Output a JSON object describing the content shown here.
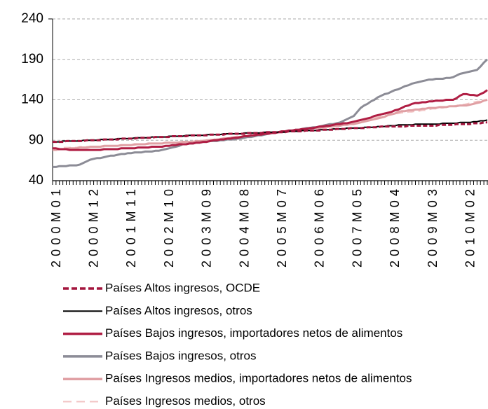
{
  "chart_data": {
    "type": "line",
    "categories": [
      "2000M01",
      null,
      null,
      null,
      null,
      null,
      null,
      null,
      null,
      null,
      null,
      "2000M12",
      null,
      null,
      null,
      null,
      null,
      null,
      null,
      null,
      null,
      null,
      "2001M11",
      null,
      null,
      null,
      null,
      null,
      null,
      null,
      null,
      null,
      null,
      "2002M10",
      null,
      null,
      null,
      null,
      null,
      null,
      null,
      null,
      null,
      null,
      "2003M09",
      null,
      null,
      null,
      null,
      null,
      null,
      null,
      null,
      null,
      null,
      "2004M08",
      null,
      null,
      null,
      null,
      null,
      null,
      null,
      null,
      null,
      null,
      "2005M07",
      null,
      null,
      null,
      null,
      null,
      null,
      null,
      null,
      null,
      null,
      "2006M06",
      null,
      null,
      null,
      null,
      null,
      null,
      null,
      null,
      null,
      null,
      "2007M05",
      null,
      null,
      null,
      null,
      null,
      null,
      null,
      null,
      null,
      null,
      "2008M04",
      null,
      null,
      null,
      null,
      null,
      null,
      null,
      null,
      null,
      null,
      "2009M03",
      null,
      null,
      null,
      null,
      null,
      null,
      null,
      null,
      null,
      null,
      "2010M02",
      null,
      null,
      null,
      null,
      null,
      null
    ],
    "ylim": [
      40,
      240
    ],
    "yticks": [
      40,
      90,
      140,
      190,
      240
    ],
    "grid": true,
    "series": [
      {
        "name": "Países Altos ingresos, OCDE",
        "color": "#a3153d",
        "dashed": true,
        "values": [
          88,
          88,
          88,
          88,
          89,
          89,
          89,
          89,
          89,
          89,
          90,
          90,
          90,
          90,
          90,
          91,
          91,
          91,
          91,
          91,
          92,
          92,
          92,
          92,
          92,
          93,
          93,
          93,
          93,
          93,
          94,
          94,
          94,
          94,
          94,
          95,
          95,
          95,
          95,
          95,
          96,
          96,
          96,
          96,
          96,
          96,
          97,
          97,
          97,
          97,
          97,
          98,
          98,
          98,
          98,
          98,
          98,
          99,
          99,
          99,
          99,
          99,
          100,
          100,
          100,
          100,
          100,
          100,
          100,
          101,
          101,
          101,
          101,
          101,
          102,
          102,
          102,
          102,
          102,
          103,
          103,
          103,
          103,
          104,
          104,
          104,
          104,
          105,
          105,
          105,
          105,
          105,
          106,
          106,
          106,
          106,
          107,
          107,
          107,
          107,
          107,
          107,
          107,
          107,
          108,
          108,
          108,
          108,
          108,
          108,
          108,
          108,
          108,
          109,
          109,
          109,
          109,
          109,
          110,
          110,
          110,
          110,
          110,
          111,
          111,
          111,
          112,
          112
        ]
      },
      {
        "name": "Países Altos ingresos, otros",
        "color": "#000000",
        "dashed": false,
        "values": [
          88,
          88,
          88,
          89,
          89,
          89,
          89,
          89,
          89,
          90,
          90,
          90,
          90,
          90,
          91,
          91,
          91,
          91,
          91,
          92,
          92,
          92,
          92,
          92,
          93,
          93,
          93,
          93,
          93,
          94,
          94,
          94,
          94,
          94,
          95,
          95,
          95,
          95,
          95,
          96,
          96,
          96,
          96,
          96,
          96,
          97,
          97,
          97,
          97,
          97,
          98,
          98,
          98,
          98,
          98,
          98,
          99,
          99,
          99,
          99,
          99,
          99,
          100,
          100,
          100,
          100,
          100,
          100,
          100,
          101,
          101,
          101,
          101,
          102,
          102,
          102,
          102,
          102,
          103,
          103,
          103,
          103,
          104,
          104,
          104,
          104,
          105,
          105,
          105,
          105,
          105,
          106,
          106,
          106,
          106,
          107,
          107,
          107,
          108,
          108,
          108,
          109,
          109,
          109,
          109,
          109,
          110,
          110,
          110,
          110,
          110,
          110,
          110,
          110,
          111,
          111,
          111,
          111,
          111,
          112,
          112,
          112,
          112,
          113,
          113,
          114,
          114,
          115
        ]
      },
      {
        "name": "Países Bajos ingresos, importadores netos de alimentos",
        "color": "#b01e44",
        "dashed": false,
        "values": [
          80,
          80,
          79,
          79,
          79,
          78,
          78,
          78,
          78,
          78,
          78,
          78,
          78,
          78,
          78,
          79,
          79,
          79,
          79,
          79,
          80,
          80,
          80,
          80,
          80,
          81,
          81,
          81,
          81,
          82,
          82,
          82,
          82,
          83,
          83,
          84,
          84,
          85,
          85,
          85,
          86,
          86,
          87,
          87,
          88,
          88,
          89,
          90,
          90,
          91,
          91,
          92,
          92,
          93,
          93,
          94,
          95,
          95,
          96,
          96,
          97,
          97,
          98,
          98,
          99,
          99,
          100,
          101,
          101,
          102,
          102,
          103,
          103,
          104,
          104,
          105,
          105,
          106,
          107,
          107,
          108,
          108,
          109,
          110,
          110,
          111,
          111,
          112,
          113,
          114,
          115,
          116,
          117,
          118,
          120,
          121,
          122,
          123,
          124,
          125,
          127,
          128,
          130,
          132,
          133,
          135,
          136,
          136,
          137,
          137,
          138,
          138,
          139,
          139,
          139,
          140,
          140,
          140,
          142,
          145,
          147,
          147,
          146,
          146,
          145,
          147,
          149,
          152
        ]
      },
      {
        "name": "Países Bajos ingresos, otros",
        "color": "#8c8c96",
        "dashed": false,
        "values": [
          57,
          57,
          58,
          58,
          58,
          59,
          59,
          59,
          60,
          62,
          64,
          66,
          67,
          68,
          68,
          69,
          70,
          71,
          71,
          72,
          73,
          73,
          74,
          74,
          75,
          75,
          75,
          76,
          76,
          76,
          77,
          77,
          78,
          79,
          80,
          81,
          82,
          83,
          85,
          85,
          86,
          86,
          87,
          87,
          88,
          88,
          89,
          89,
          89,
          90,
          90,
          91,
          91,
          91,
          92,
          92,
          93,
          94,
          94,
          95,
          96,
          96,
          97,
          98,
          99,
          99,
          100,
          101,
          101,
          102,
          102,
          103,
          103,
          104,
          105,
          105,
          106,
          106,
          107,
          108,
          109,
          110,
          110,
          111,
          112,
          114,
          116,
          118,
          120,
          125,
          130,
          133,
          135,
          138,
          140,
          143,
          145,
          147,
          148,
          150,
          152,
          153,
          155,
          157,
          158,
          160,
          161,
          162,
          163,
          164,
          165,
          165,
          166,
          166,
          166,
          167,
          167,
          168,
          170,
          172,
          173,
          174,
          175,
          176,
          177,
          181,
          186,
          190
        ]
      },
      {
        "name": "Países Ingresos medios, importadores netos de alimentos",
        "color": "#e0a0a4",
        "dashed": false,
        "values": [
          78,
          78,
          79,
          79,
          79,
          80,
          80,
          80,
          81,
          81,
          81,
          82,
          82,
          82,
          82,
          83,
          83,
          83,
          83,
          83,
          84,
          84,
          84,
          84,
          85,
          85,
          85,
          85,
          86,
          86,
          86,
          86,
          86,
          87,
          87,
          87,
          87,
          87,
          88,
          88,
          88,
          88,
          89,
          89,
          89,
          90,
          90,
          90,
          91,
          91,
          92,
          92,
          93,
          93,
          94,
          94,
          95,
          95,
          96,
          96,
          97,
          97,
          98,
          98,
          99,
          99,
          100,
          100,
          101,
          101,
          102,
          102,
          103,
          103,
          104,
          104,
          105,
          105,
          105,
          106,
          106,
          107,
          107,
          108,
          108,
          109,
          109,
          110,
          110,
          111,
          112,
          113,
          114,
          115,
          116,
          117,
          118,
          119,
          121,
          122,
          123,
          125,
          126,
          126,
          127,
          127,
          128,
          128,
          129,
          129,
          130,
          130,
          130,
          131,
          131,
          131,
          132,
          132,
          132,
          133,
          133,
          133,
          134,
          135,
          136,
          137,
          139,
          140
        ]
      },
      {
        "name": "Países Ingresos medios, otros",
        "color": "#f2c4c4",
        "dashed": true,
        "values": [
          80,
          80,
          80,
          81,
          81,
          81,
          81,
          81,
          82,
          82,
          82,
          82,
          82,
          82,
          82,
          82,
          83,
          83,
          83,
          83,
          83,
          84,
          84,
          84,
          84,
          85,
          85,
          85,
          85,
          86,
          86,
          86,
          86,
          87,
          87,
          87,
          87,
          88,
          88,
          88,
          88,
          89,
          89,
          89,
          90,
          90,
          91,
          91,
          92,
          92,
          93,
          93,
          94,
          94,
          95,
          95,
          96,
          96,
          97,
          97,
          98,
          98,
          99,
          99,
          100,
          100,
          100,
          101,
          101,
          102,
          102,
          103,
          103,
          104,
          104,
          105,
          105,
          106,
          107,
          107,
          108,
          108,
          109,
          109,
          110,
          110,
          111,
          111,
          112,
          113,
          114,
          115,
          116,
          117,
          118,
          119,
          120,
          121,
          121,
          122,
          123,
          123,
          124,
          124,
          125,
          125,
          126,
          126,
          127,
          127,
          128,
          129,
          129,
          130,
          130,
          131,
          132,
          132,
          133,
          134,
          134,
          135,
          136,
          137,
          138,
          138,
          139,
          140
        ]
      }
    ]
  }
}
